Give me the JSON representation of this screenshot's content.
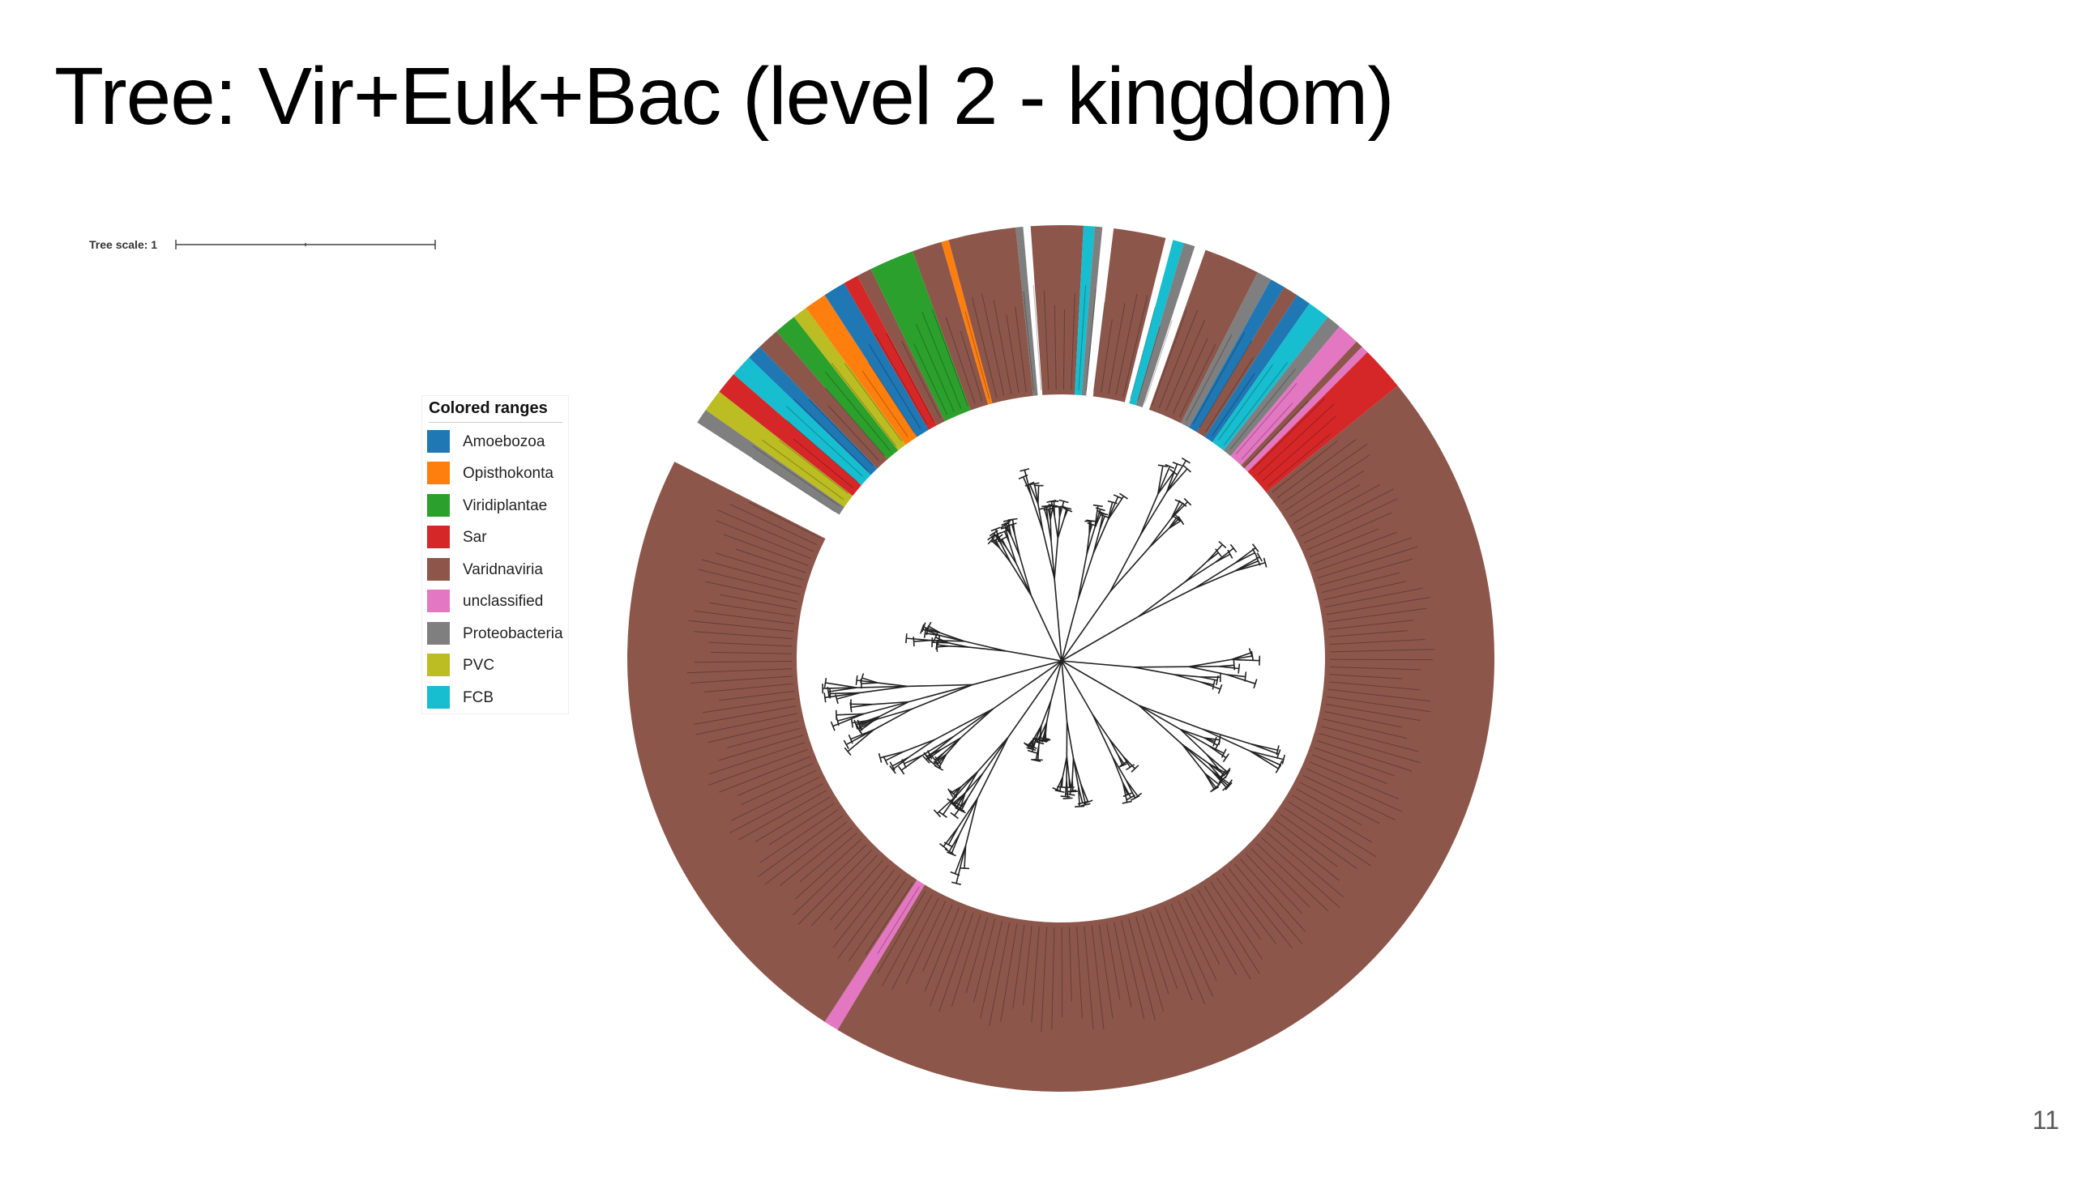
{
  "slide": {
    "title": "Tree: Vir+Euk+Bac (level 2 - kingdom)",
    "page_number": "11"
  },
  "tree_scale": {
    "label": "Tree scale: 1"
  },
  "legend": {
    "title": "Colored ranges",
    "items": [
      {
        "label": "Amoebozoa",
        "color": "#1f77b4"
      },
      {
        "label": "Opisthokonta",
        "color": "#ff7f0e"
      },
      {
        "label": "Viridiplantae",
        "color": "#2ca02c"
      },
      {
        "label": "Sar",
        "color": "#d62728"
      },
      {
        "label": "Varidnaviria",
        "color": "#8c564b"
      },
      {
        "label": "unclassified",
        "color": "#e377c2"
      },
      {
        "label": "Proteobacteria",
        "color": "#7f7f7f"
      },
      {
        "label": "PVC",
        "color": "#bcbd22"
      },
      {
        "label": "FCB",
        "color": "#17becf"
      }
    ]
  },
  "ring_segments": [
    {
      "from": -57,
      "to": -55,
      "group": "Proteobacteria"
    },
    {
      "from": -55,
      "to": -52,
      "group": "PVC"
    },
    {
      "from": -52,
      "to": -49,
      "group": "Sar"
    },
    {
      "from": -49,
      "to": -46,
      "group": "FCB"
    },
    {
      "from": -46,
      "to": -44,
      "group": "Amoebozoa"
    },
    {
      "from": -44,
      "to": -41,
      "group": "Varidnaviria"
    },
    {
      "from": -41,
      "to": -38,
      "group": "Viridiplantae"
    },
    {
      "from": -38,
      "to": -36,
      "group": "PVC"
    },
    {
      "from": -36,
      "to": -33,
      "group": "Opisthokonta"
    },
    {
      "from": -33,
      "to": -30,
      "group": "Amoebozoa"
    },
    {
      "from": -30,
      "to": -28,
      "group": "Sar"
    },
    {
      "from": -28,
      "to": -26,
      "group": "Varidnaviria"
    },
    {
      "from": -26,
      "to": -20,
      "group": "Viridiplantae"
    },
    {
      "from": -20,
      "to": -16,
      "group": "Varidnaviria"
    },
    {
      "from": -16,
      "to": -15,
      "group": "Opisthokonta"
    },
    {
      "from": -15,
      "to": -6,
      "group": "Varidnaviria"
    },
    {
      "from": -6,
      "to": -5,
      "group": "Proteobacteria"
    },
    {
      "from": -4,
      "to": 3,
      "group": "Varidnaviria"
    },
    {
      "from": 3,
      "to": 4.5,
      "group": "FCB"
    },
    {
      "from": 4.5,
      "to": 5.5,
      "group": "Proteobacteria"
    },
    {
      "from": 7,
      "to": 14,
      "group": "Varidnaviria"
    },
    {
      "from": 15,
      "to": 16.5,
      "group": "FCB"
    },
    {
      "from": 16.5,
      "to": 18,
      "group": "Proteobacteria"
    },
    {
      "from": 19.5,
      "to": 27,
      "group": "Varidnaviria"
    },
    {
      "from": 27,
      "to": 29,
      "group": "Proteobacteria"
    },
    {
      "from": 29,
      "to": 31,
      "group": "Amoebozoa"
    },
    {
      "from": 31,
      "to": 33,
      "group": "Varidnaviria"
    },
    {
      "from": 33,
      "to": 35,
      "group": "Amoebozoa"
    },
    {
      "from": 35,
      "to": 38,
      "group": "FCB"
    },
    {
      "from": 38,
      "to": 40,
      "group": "Proteobacteria"
    },
    {
      "from": 40,
      "to": 43,
      "group": "unclassified"
    },
    {
      "from": 43,
      "to": 44,
      "group": "Varidnaviria"
    },
    {
      "from": 44,
      "to": 45,
      "group": "unclassified"
    },
    {
      "from": 45,
      "to": 51,
      "group": "Sar"
    },
    {
      "from": 51,
      "to": 211,
      "group": "Varidnaviria"
    },
    {
      "from": 211,
      "to": 213,
      "group": "unclassified"
    },
    {
      "from": 213,
      "to": 297,
      "group": "Varidnaviria"
    }
  ]
}
